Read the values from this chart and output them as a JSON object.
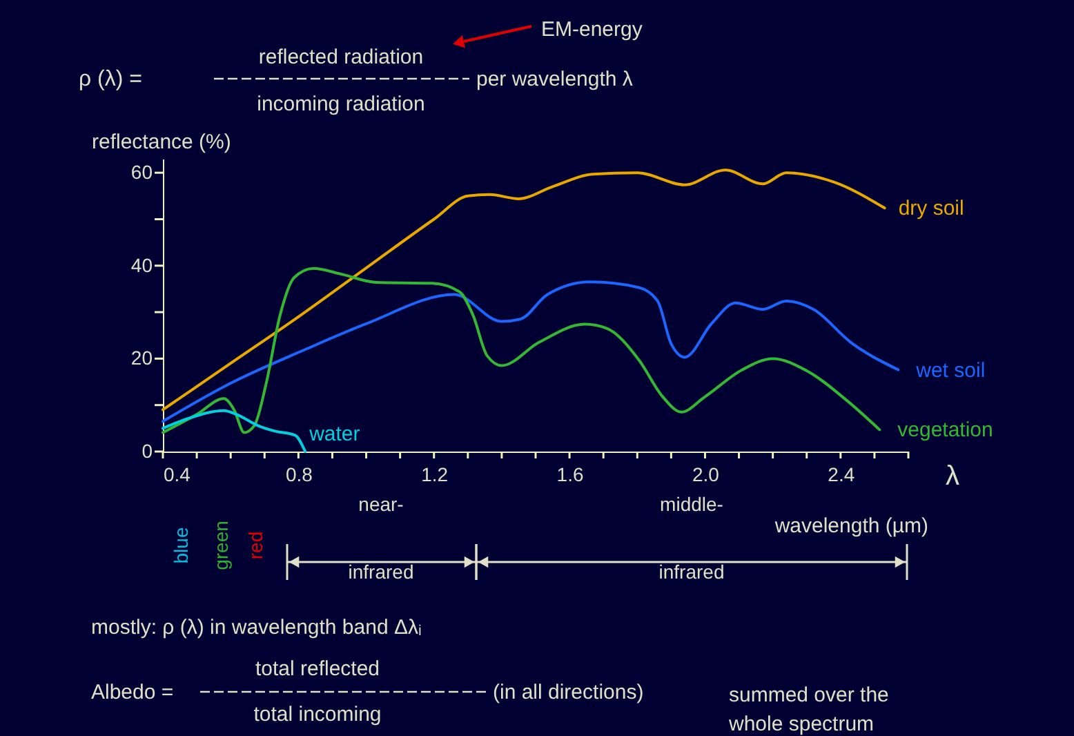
{
  "chart_data": {
    "type": "line",
    "xlabel": "wavelength (µm)",
    "ylabel": "reflectance (%)",
    "xlim": [
      0.4,
      2.6
    ],
    "ylim": [
      0,
      63
    ],
    "xticks": [
      0.4,
      {
        "value": 0.5,
        "label": null
      },
      {
        "value": 0.6,
        "label": null
      },
      {
        "value": 0.7,
        "label": null
      },
      0.8,
      {
        "value": 0.9,
        "label": null
      },
      {
        "value": 1.0,
        "label": null
      },
      {
        "value": 1.1,
        "label": null
      },
      1.2,
      {
        "value": 1.3,
        "label": null
      },
      {
        "value": 1.4,
        "label": null
      },
      {
        "value": 1.5,
        "label": null
      },
      1.6,
      {
        "value": 1.7,
        "label": null
      },
      {
        "value": 1.8,
        "label": null
      },
      {
        "value": 1.9,
        "label": null
      },
      {
        "value": 2.0,
        "label": "2.0"
      },
      {
        "value": 2.1,
        "label": null
      },
      {
        "value": 2.2,
        "label": null
      },
      {
        "value": 2.3,
        "label": null
      },
      2.4,
      {
        "value": 2.5,
        "label": null
      },
      {
        "value": 2.6,
        "label": null
      }
    ],
    "yticks": [
      0,
      {
        "value": 10,
        "label": null
      },
      20,
      {
        "value": 30,
        "label": null
      },
      40,
      {
        "value": 50,
        "label": null
      },
      60
    ],
    "grid": false,
    "legend": false,
    "marker": "none",
    "line_style": "solid",
    "series": [
      {
        "name": "dry soil",
        "color": "#e8a800",
        "x": [
          0.4,
          0.6,
          0.8,
          1.0,
          1.2,
          1.3,
          1.365,
          1.45,
          1.55,
          1.67,
          1.8,
          1.94,
          2.06,
          2.17,
          2.24,
          2.38,
          2.53
        ],
        "values": [
          9,
          19,
          29,
          39.5,
          50,
          55,
          55.3,
          54.4,
          57,
          59.7,
          60,
          57.4,
          60.6,
          57.6,
          60,
          58,
          52.4
        ]
      },
      {
        "name": "wet soil",
        "color": "#1a66ff",
        "x": [
          0.4,
          0.6,
          0.815,
          1.0,
          1.26,
          1.4,
          1.455,
          1.535,
          1.66,
          1.805,
          1.86,
          1.9,
          1.94,
          2.02,
          2.09,
          2.17,
          2.24,
          2.32,
          2.43,
          2.57
        ],
        "values": [
          6.5,
          14.7,
          21.8,
          27.5,
          33.8,
          28,
          28.5,
          33.8,
          36.5,
          35.3,
          32.4,
          23.2,
          20.3,
          27.6,
          32,
          30.6,
          32.4,
          30.6,
          23.5,
          17.6
        ]
      },
      {
        "name": "vegetation",
        "color": "#33b833",
        "x": [
          0.4,
          0.5,
          0.58,
          0.61,
          0.64,
          0.67,
          0.705,
          0.746,
          0.787,
          0.844,
          0.925,
          1.03,
          1.195,
          1.275,
          1.315,
          1.357,
          1.4,
          1.51,
          1.645,
          1.71,
          1.805,
          1.875,
          1.93,
          2.0,
          2.11,
          2.2,
          2.3,
          2.42,
          2.515
        ],
        "values": [
          4.1,
          8,
          11.4,
          9,
          4.1,
          5.6,
          14.7,
          29.4,
          37.4,
          39.4,
          38.2,
          36.4,
          36.2,
          34.4,
          29.4,
          20.6,
          18.5,
          23.5,
          27.4,
          26.5,
          19.7,
          11.8,
          8.5,
          11.8,
          17.6,
          20,
          17.4,
          10.9,
          4.7
        ]
      },
      {
        "name": "water",
        "color": "#00d0e0",
        "x": [
          0.4,
          0.47,
          0.58,
          0.62,
          0.68,
          0.73,
          0.79,
          0.82
        ],
        "values": [
          5,
          7,
          8.8,
          7.9,
          5.6,
          4.4,
          3.5,
          0
        ]
      }
    ],
    "annotations": [
      "ρ (λ) =",
      "reflected radiation",
      "incoming radiation",
      "per wavelength λ",
      "EM-energy",
      "mostly: ρ (λ) in wavelength band Δλᵢ",
      "Albedo =",
      "total reflected",
      "total incoming",
      "(in all directions)",
      "summed over the\nwhole spectrum",
      "λ",
      "blue",
      "green",
      "red",
      "near-\ninfrared",
      "middle-\ninfrared"
    ]
  }
}
